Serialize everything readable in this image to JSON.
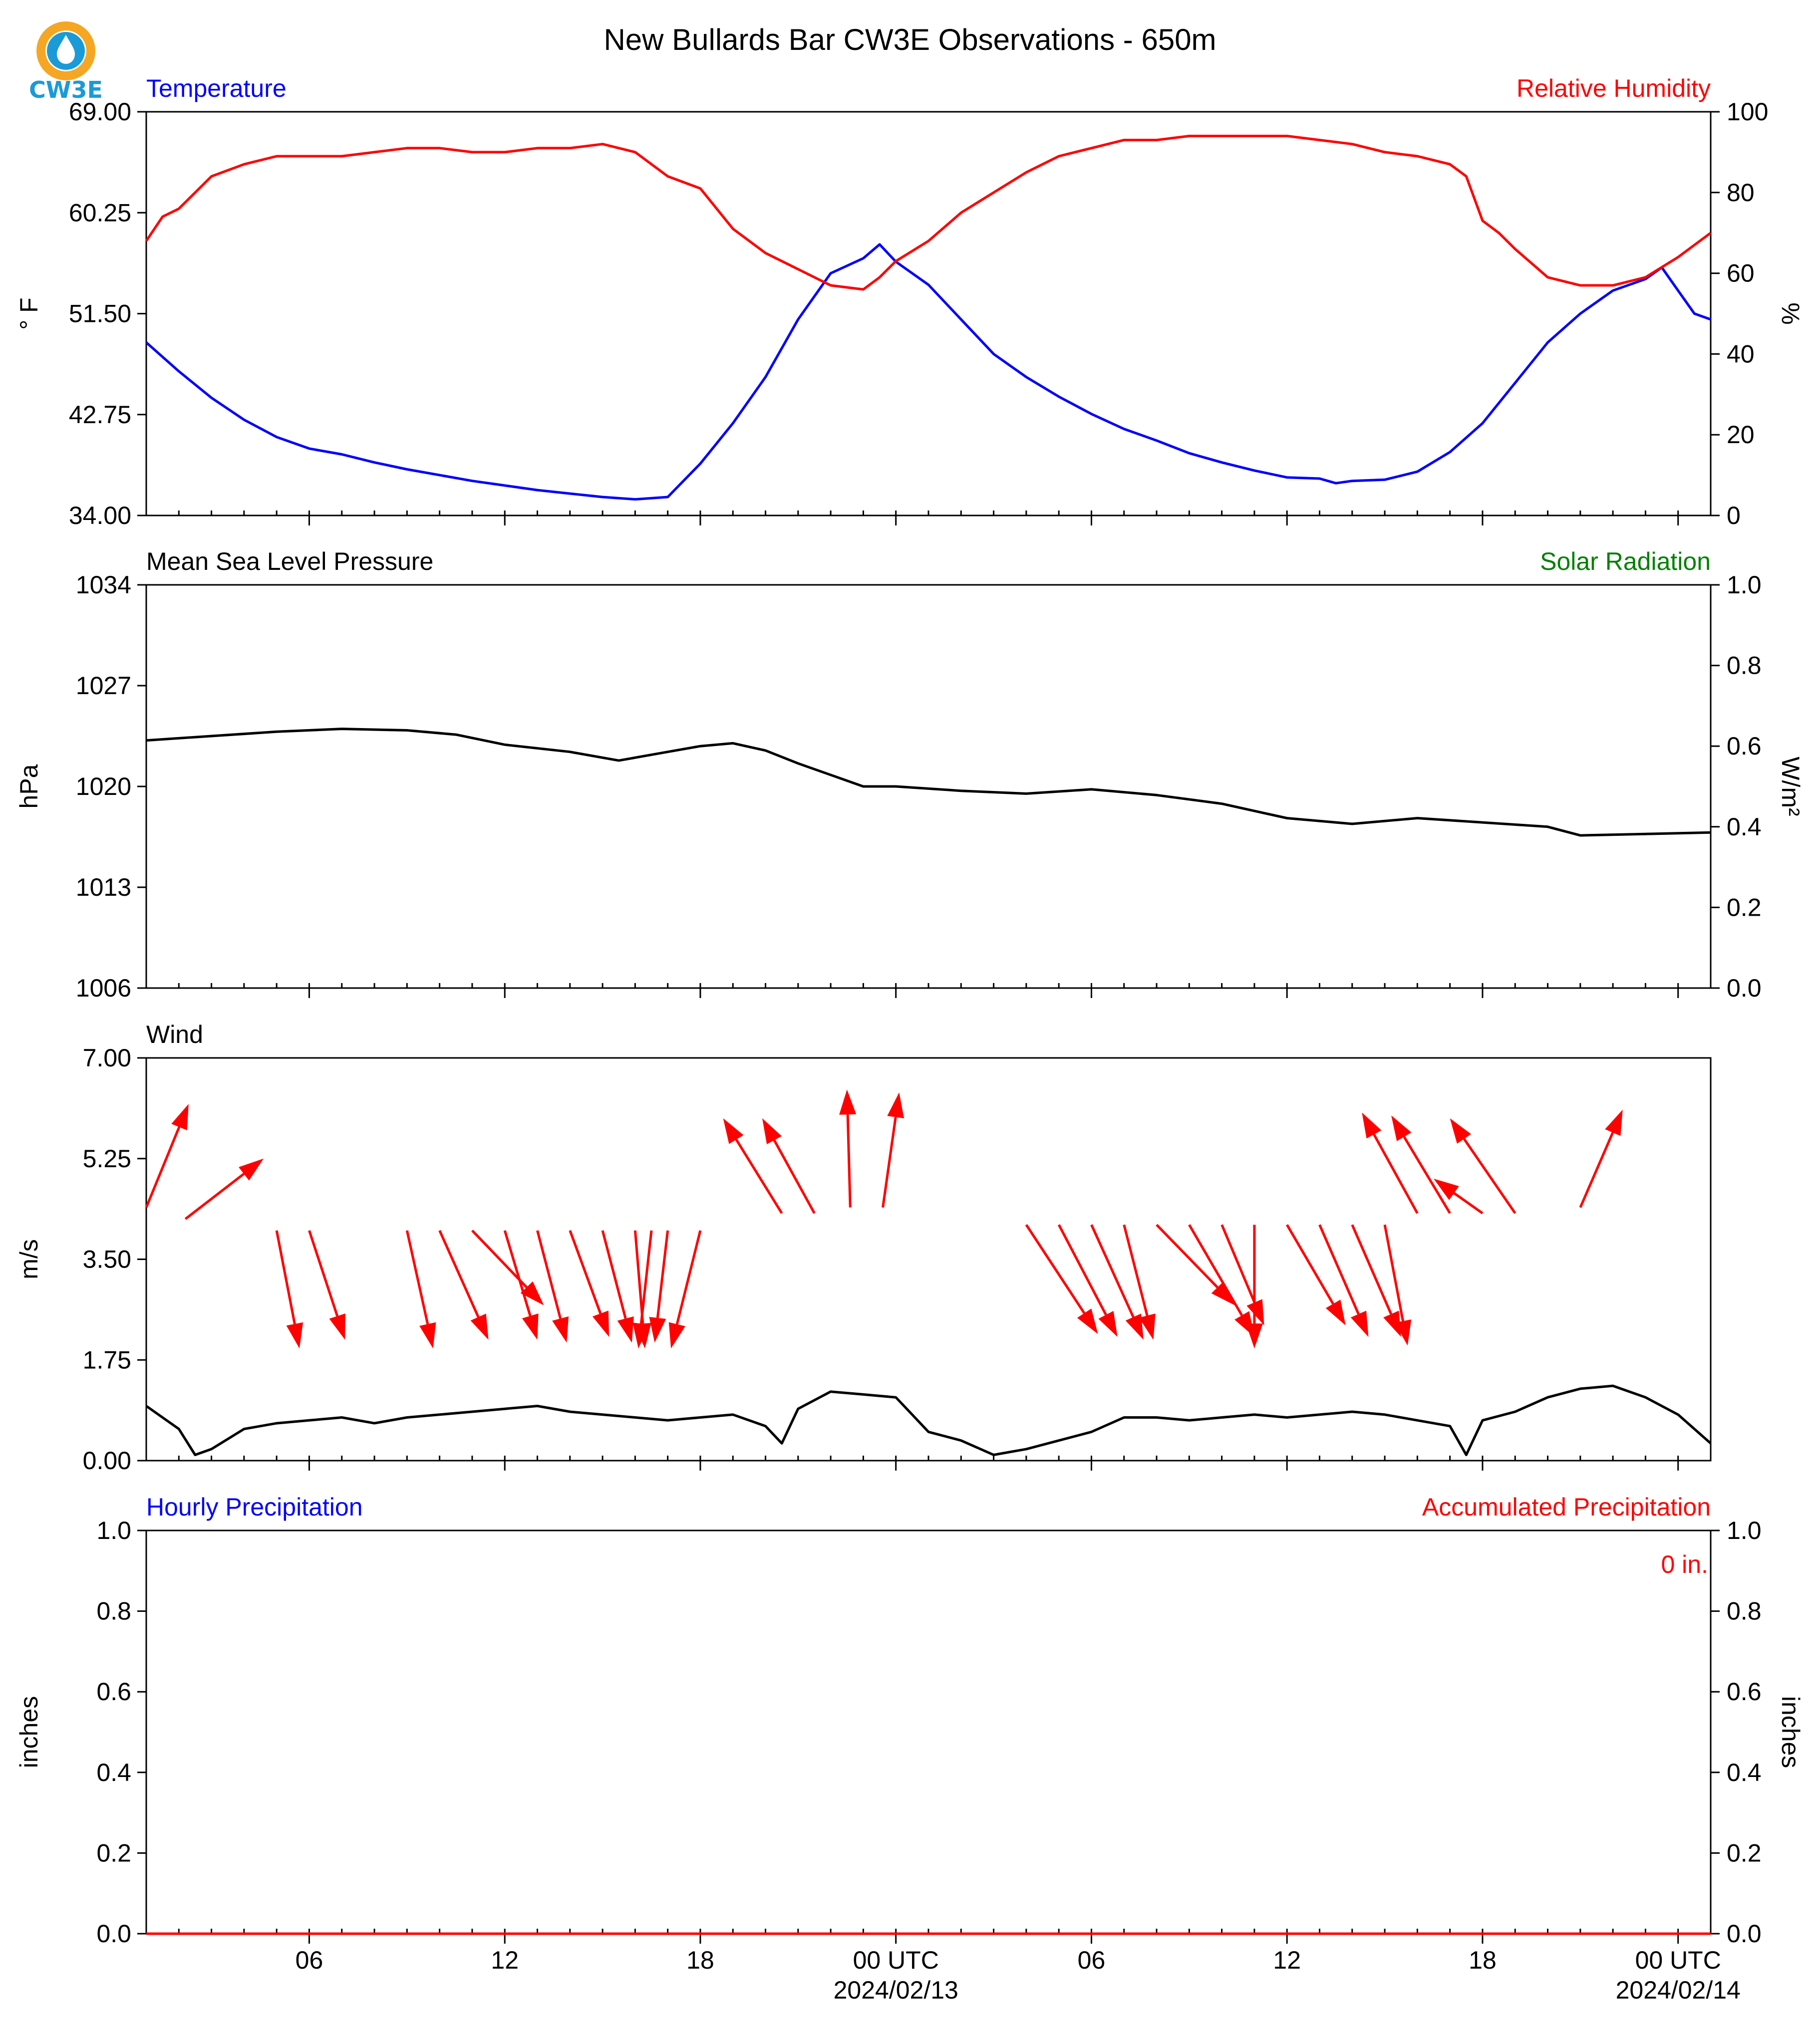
{
  "title": "New Bullards Bar CW3E Observations - 650m",
  "logo": {
    "text": "CW3E",
    "ring_color": "#f5a623",
    "drop_color": "#1a9bd7",
    "text_color": "#1a9bd7"
  },
  "colors": {
    "blue": "#0000ff",
    "red": "#ff0000",
    "green": "#008000",
    "black": "#000000"
  },
  "x_axis": {
    "start": "2024-02-12T01:00Z",
    "end": "2024-02-14T01:00Z",
    "ticks": [
      {
        "hours": 5,
        "label": "06"
      },
      {
        "hours": 11,
        "label": "12"
      },
      {
        "hours": 17,
        "label": "18"
      },
      {
        "hours": 23,
        "label": "00 UTC",
        "date": "2024/02/13"
      },
      {
        "hours": 29,
        "label": "06"
      },
      {
        "hours": 35,
        "label": "12"
      },
      {
        "hours": 41,
        "label": "18"
      },
      {
        "hours": 47,
        "label": "00 UTC",
        "date": "2024/02/14"
      }
    ]
  },
  "chart_data": [
    {
      "type": "line",
      "left_title": "Temperature",
      "right_title": "Relative Humidity",
      "ylabel": "° F",
      "y2label": "%",
      "ylim": [
        34,
        69
      ],
      "yticks": [
        "34.00",
        "42.75",
        "51.50",
        "60.25",
        "69.00"
      ],
      "y2lim": [
        0,
        100
      ],
      "y2ticks": [
        "0",
        "20",
        "40",
        "60",
        "80",
        "100"
      ],
      "series": [
        {
          "axis": "left",
          "color": "#0000ff",
          "points": [
            [
              0,
              49.0
            ],
            [
              1,
              46.5
            ],
            [
              2,
              44.2
            ],
            [
              3,
              42.3
            ],
            [
              4,
              40.8
            ],
            [
              5,
              39.8
            ],
            [
              6,
              39.3
            ],
            [
              7,
              38.6
            ],
            [
              8,
              38.0
            ],
            [
              9,
              37.5
            ],
            [
              10,
              37.0
            ],
            [
              11,
              36.6
            ],
            [
              12,
              36.2
            ],
            [
              13,
              35.9
            ],
            [
              14,
              35.6
            ],
            [
              15,
              35.4
            ],
            [
              16,
              35.6
            ],
            [
              17,
              38.5
            ],
            [
              18,
              42.0
            ],
            [
              19,
              46.0
            ],
            [
              20,
              51.0
            ],
            [
              21,
              55.0
            ],
            [
              22,
              56.3
            ],
            [
              22.5,
              57.5
            ],
            [
              23,
              56.0
            ],
            [
              24,
              54.0
            ],
            [
              25,
              51.0
            ],
            [
              26,
              48.0
            ],
            [
              27,
              46.0
            ],
            [
              28,
              44.3
            ],
            [
              29,
              42.8
            ],
            [
              30,
              41.5
            ],
            [
              31,
              40.5
            ],
            [
              32,
              39.4
            ],
            [
              33,
              38.6
            ],
            [
              34,
              37.9
            ],
            [
              35,
              37.3
            ],
            [
              36,
              37.2
            ],
            [
              36.5,
              36.8
            ],
            [
              37,
              37.0
            ],
            [
              38,
              37.1
            ],
            [
              39,
              37.8
            ],
            [
              40,
              39.5
            ],
            [
              41,
              42.0
            ],
            [
              42,
              45.5
            ],
            [
              43,
              49.0
            ],
            [
              44,
              51.5
            ],
            [
              45,
              53.5
            ],
            [
              46,
              54.5
            ],
            [
              46.5,
              55.5
            ],
            [
              47,
              53.5
            ],
            [
              47.5,
              51.5
            ],
            [
              48,
              51.0
            ]
          ]
        },
        {
          "axis": "right",
          "color": "#ff0000",
          "points": [
            [
              0,
              68
            ],
            [
              0.5,
              74
            ],
            [
              1,
              76
            ],
            [
              2,
              84
            ],
            [
              3,
              87
            ],
            [
              4,
              89
            ],
            [
              5,
              89
            ],
            [
              6,
              89
            ],
            [
              7,
              90
            ],
            [
              8,
              91
            ],
            [
              9,
              91
            ],
            [
              10,
              90
            ],
            [
              11,
              90
            ],
            [
              12,
              91
            ],
            [
              13,
              91
            ],
            [
              14,
              92
            ],
            [
              15,
              90
            ],
            [
              16,
              84
            ],
            [
              17,
              81
            ],
            [
              18,
              71
            ],
            [
              19,
              65
            ],
            [
              20,
              61
            ],
            [
              21,
              57
            ],
            [
              22,
              56
            ],
            [
              22.5,
              59
            ],
            [
              23,
              63
            ],
            [
              24,
              68
            ],
            [
              25,
              75
            ],
            [
              26,
              80
            ],
            [
              27,
              85
            ],
            [
              28,
              89
            ],
            [
              29,
              91
            ],
            [
              30,
              93
            ],
            [
              31,
              93
            ],
            [
              32,
              94
            ],
            [
              33,
              94
            ],
            [
              34,
              94
            ],
            [
              35,
              94
            ],
            [
              36,
              93
            ],
            [
              37,
              92
            ],
            [
              38,
              90
            ],
            [
              39,
              89
            ],
            [
              40,
              87
            ],
            [
              40.5,
              84
            ],
            [
              41,
              73
            ],
            [
              41.5,
              70
            ],
            [
              42,
              66
            ],
            [
              43,
              59
            ],
            [
              44,
              57
            ],
            [
              45,
              57
            ],
            [
              46,
              59
            ],
            [
              47,
              64
            ],
            [
              48,
              70
            ]
          ]
        }
      ]
    },
    {
      "type": "line",
      "left_title": "Mean Sea Level Pressure",
      "right_title": "Solar Radiation",
      "ylabel": "hPa",
      "y2label": "W/m²",
      "ylim": [
        1006,
        1034
      ],
      "yticks": [
        "1006",
        "1013",
        "1020",
        "1027",
        "1034"
      ],
      "y2lim": [
        0,
        1.0
      ],
      "y2ticks": [
        "0.0",
        "0.2",
        "0.4",
        "0.6",
        "0.8",
        "1.0"
      ],
      "series": [
        {
          "axis": "left",
          "color": "#000000",
          "points": [
            [
              0,
              1023.2
            ],
            [
              2,
              1023.5
            ],
            [
              4,
              1023.8
            ],
            [
              6,
              1024.0
            ],
            [
              8,
              1023.9
            ],
            [
              9.5,
              1023.6
            ],
            [
              11,
              1022.9
            ],
            [
              13,
              1022.4
            ],
            [
              14.5,
              1021.8
            ],
            [
              16,
              1022.4
            ],
            [
              17,
              1022.8
            ],
            [
              18,
              1023.0
            ],
            [
              19,
              1022.5
            ],
            [
              20,
              1021.6
            ],
            [
              22,
              1020.0
            ],
            [
              23,
              1020.0
            ],
            [
              25,
              1019.7
            ],
            [
              27,
              1019.5
            ],
            [
              29,
              1019.8
            ],
            [
              31,
              1019.4
            ],
            [
              33,
              1018.8
            ],
            [
              35,
              1017.8
            ],
            [
              37,
              1017.4
            ],
            [
              39,
              1017.8
            ],
            [
              41,
              1017.5
            ],
            [
              43,
              1017.2
            ],
            [
              44,
              1016.6
            ],
            [
              46,
              1016.7
            ],
            [
              48,
              1016.8
            ]
          ]
        }
      ]
    },
    {
      "type": "line",
      "left_title": "Wind",
      "ylabel": "m/s",
      "ylim": [
        0,
        7
      ],
      "yticks": [
        "0.00",
        "1.75",
        "3.50",
        "5.25",
        "7.00"
      ],
      "series": [
        {
          "axis": "left",
          "color": "#000000",
          "points": [
            [
              0,
              0.95
            ],
            [
              1,
              0.55
            ],
            [
              1.5,
              0.1
            ],
            [
              2,
              0.2
            ],
            [
              3,
              0.55
            ],
            [
              4,
              0.65
            ],
            [
              5,
              0.7
            ],
            [
              6,
              0.75
            ],
            [
              7,
              0.65
            ],
            [
              8,
              0.75
            ],
            [
              9,
              0.8
            ],
            [
              10,
              0.85
            ],
            [
              11,
              0.9
            ],
            [
              12,
              0.95
            ],
            [
              13,
              0.85
            ],
            [
              14,
              0.8
            ],
            [
              15,
              0.75
            ],
            [
              16,
              0.7
            ],
            [
              17,
              0.75
            ],
            [
              18,
              0.8
            ],
            [
              19,
              0.6
            ],
            [
              19.5,
              0.3
            ],
            [
              20,
              0.9
            ],
            [
              21,
              1.2
            ],
            [
              22,
              1.15
            ],
            [
              23,
              1.1
            ],
            [
              23.5,
              0.8
            ],
            [
              24,
              0.5
            ],
            [
              25,
              0.35
            ],
            [
              26,
              0.1
            ],
            [
              27,
              0.2
            ],
            [
              28,
              0.35
            ],
            [
              29,
              0.5
            ],
            [
              30,
              0.75
            ],
            [
              31,
              0.75
            ],
            [
              32,
              0.7
            ],
            [
              33,
              0.75
            ],
            [
              34,
              0.8
            ],
            [
              35,
              0.75
            ],
            [
              36,
              0.8
            ],
            [
              37,
              0.85
            ],
            [
              38,
              0.8
            ],
            [
              39,
              0.7
            ],
            [
              40,
              0.6
            ],
            [
              40.5,
              0.1
            ],
            [
              41,
              0.7
            ],
            [
              42,
              0.85
            ],
            [
              43,
              1.1
            ],
            [
              44,
              1.25
            ],
            [
              45,
              1.3
            ],
            [
              46,
              1.1
            ],
            [
              47,
              0.8
            ],
            [
              48,
              0.3
            ]
          ]
        }
      ],
      "vectors": {
        "color": "#ff0000",
        "arrows": [
          [
            0,
            4.4,
            1.3,
            6.2
          ],
          [
            1.2,
            4.2,
            3.6,
            5.25
          ],
          [
            4,
            4.0,
            4.7,
            1.95
          ],
          [
            5,
            4.0,
            6.1,
            2.1
          ],
          [
            8,
            4.0,
            8.8,
            1.95
          ],
          [
            9,
            4.0,
            10.5,
            2.1
          ],
          [
            10,
            4.0,
            12.2,
            2.7
          ],
          [
            11,
            4.0,
            12.0,
            2.1
          ],
          [
            12,
            4.0,
            12.9,
            2.05
          ],
          [
            13,
            4.0,
            14.2,
            2.15
          ],
          [
            14,
            4.0,
            14.9,
            2.05
          ],
          [
            15,
            4.0,
            15.3,
            1.95
          ],
          [
            15.5,
            4.0,
            15.1,
            1.95
          ],
          [
            16,
            4.0,
            15.6,
            2.05
          ],
          [
            17,
            4.0,
            16.1,
            1.95
          ],
          [
            19.5,
            4.3,
            17.7,
            5.95
          ],
          [
            20.5,
            4.3,
            18.9,
            5.95
          ],
          [
            21.6,
            4.4,
            21.5,
            6.45
          ],
          [
            22.6,
            4.4,
            23.1,
            6.4
          ],
          [
            27,
            4.1,
            29.2,
            2.2
          ],
          [
            28,
            4.1,
            29.8,
            2.15
          ],
          [
            29,
            4.1,
            30.6,
            2.1
          ],
          [
            30,
            4.1,
            30.9,
            2.1
          ],
          [
            31,
            4.1,
            33.4,
            2.7
          ],
          [
            32,
            4.1,
            34.0,
            2.15
          ],
          [
            33,
            4.1,
            34.3,
            2.35
          ],
          [
            34,
            4.1,
            34.0,
            1.95
          ],
          [
            35,
            4.1,
            36.8,
            2.35
          ],
          [
            36,
            4.1,
            37.5,
            2.15
          ],
          [
            37,
            4.1,
            38.5,
            2.15
          ],
          [
            38,
            4.1,
            38.7,
            2.0
          ],
          [
            39,
            4.3,
            37.3,
            6.05
          ],
          [
            40,
            4.3,
            38.2,
            6.0
          ],
          [
            41,
            4.3,
            39.5,
            4.9
          ],
          [
            42,
            4.3,
            40.0,
            5.95
          ],
          [
            44,
            4.4,
            45.3,
            6.1
          ]
        ]
      }
    },
    {
      "type": "line",
      "left_title": "Hourly Precipitation",
      "right_title": "Accumulated Precipitation",
      "annotation": "0 in.",
      "ylabel": "inches",
      "y2label": "inches",
      "ylim": [
        0,
        1
      ],
      "yticks": [
        "0.0",
        "0.2",
        "0.4",
        "0.6",
        "0.8",
        "1.0"
      ],
      "y2lim": [
        0,
        1
      ],
      "y2ticks": [
        "0.0",
        "0.2",
        "0.4",
        "0.6",
        "0.8",
        "1.0"
      ],
      "series": [
        {
          "axis": "left",
          "color": "#0000ff",
          "points": [
            [
              0,
              0
            ],
            [
              48,
              0
            ]
          ]
        },
        {
          "axis": "right",
          "color": "#ff0000",
          "points": [
            [
              0,
              0
            ],
            [
              48,
              0
            ]
          ]
        }
      ]
    }
  ]
}
